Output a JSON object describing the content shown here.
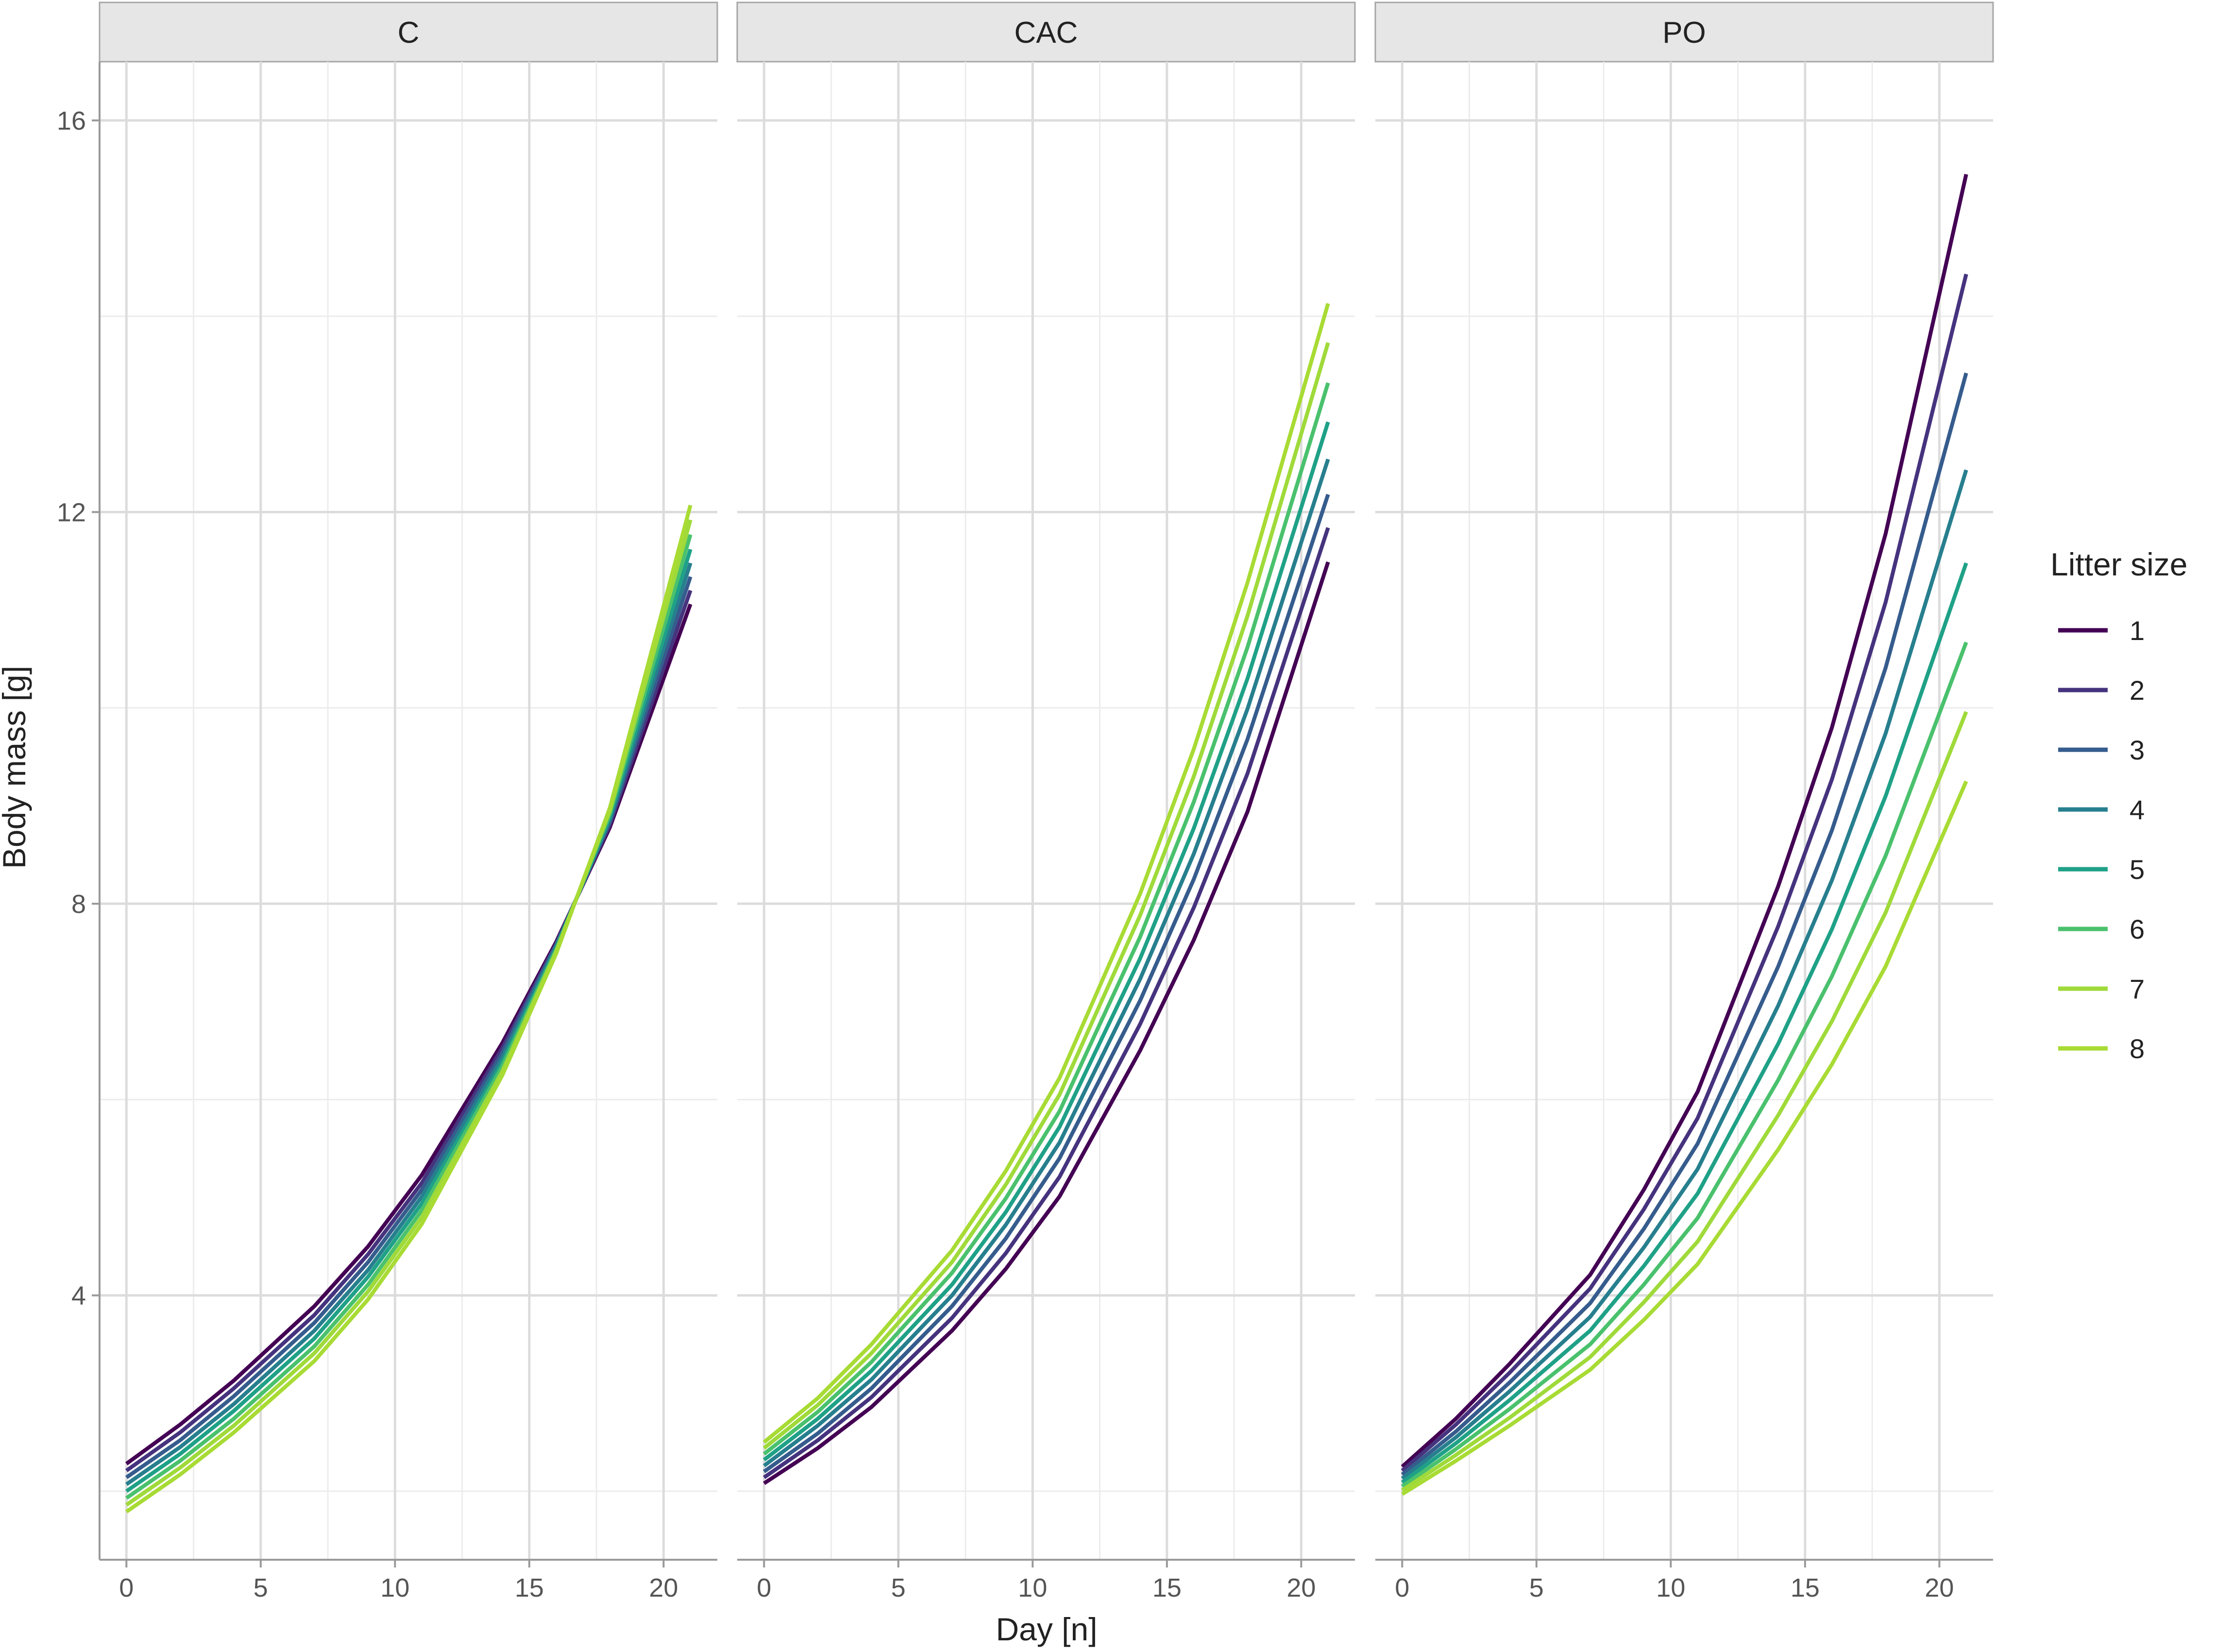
{
  "chart_data": {
    "type": "line",
    "facet_type": "small multiples",
    "xlabel": "Day [n]",
    "ylabel": "Body mass [g]",
    "xlim": [
      -1,
      22
    ],
    "ylim": [
      1.3,
      16.6
    ],
    "x_ticks": [
      0,
      5,
      10,
      15,
      20
    ],
    "x_tick_labels": [
      "0",
      "5",
      "10",
      "15",
      "20"
    ],
    "y_ticks": [
      4,
      8,
      12,
      16
    ],
    "y_tick_labels": [
      "4",
      "8",
      "12",
      "16"
    ],
    "grid": true,
    "x": [
      0,
      2,
      4,
      7,
      9,
      11,
      14,
      16,
      18,
      21
    ],
    "legend": {
      "title": "Litter size",
      "position": "right",
      "entries": [
        "1",
        "2",
        "3",
        "4",
        "5",
        "6",
        "7",
        "8"
      ]
    },
    "series_colors": [
      "#440154",
      "#46337E",
      "#365C8D",
      "#277F8E",
      "#1FA187",
      "#4AC16D",
      "#9FDA3A",
      "#A8DB34"
    ],
    "panels": [
      {
        "title": "C",
        "series": [
          {
            "name": "1",
            "values": [
              2.28,
              2.68,
              3.13,
              3.89,
              4.5,
              5.23,
              6.58,
              7.61,
              8.78,
              11.06
            ]
          },
          {
            "name": "2",
            "values": [
              2.21,
              2.6,
              3.05,
              3.8,
              4.42,
              5.15,
              6.53,
              7.59,
              8.81,
              11.2
            ]
          },
          {
            "name": "3",
            "values": [
              2.14,
              2.52,
              2.97,
              3.72,
              4.34,
              5.08,
              6.48,
              7.58,
              8.84,
              11.34
            ]
          },
          {
            "name": "4",
            "values": [
              2.07,
              2.45,
              2.89,
              3.64,
              4.26,
              5.01,
              6.43,
              7.56,
              8.86,
              11.48
            ]
          },
          {
            "name": "5",
            "values": [
              2.0,
              2.38,
              2.82,
              3.56,
              4.19,
              4.94,
              6.38,
              7.54,
              8.89,
              11.62
            ]
          },
          {
            "name": "6",
            "values": [
              1.93,
              2.31,
              2.74,
              3.48,
              4.11,
              4.87,
              6.34,
              7.53,
              8.92,
              11.77
            ]
          },
          {
            "name": "7",
            "values": [
              1.86,
              2.24,
              2.67,
              3.41,
              4.04,
              4.8,
              6.29,
              7.51,
              8.95,
              11.92
            ]
          },
          {
            "name": "8",
            "values": [
              1.79,
              2.17,
              2.6,
              3.33,
              3.96,
              4.73,
              6.25,
              7.49,
              8.98,
              12.07
            ]
          }
        ]
      },
      {
        "title": "CAC",
        "series": [
          {
            "name": "1",
            "values": [
              2.08,
              2.44,
              2.86,
              3.64,
              4.27,
              5.01,
              6.5,
              7.63,
              8.94,
              11.49
            ]
          },
          {
            "name": "2",
            "values": [
              2.14,
              2.52,
              2.96,
              3.77,
              4.43,
              5.21,
              6.77,
              7.96,
              9.33,
              11.84
            ]
          },
          {
            "name": "3",
            "values": [
              2.2,
              2.59,
              3.05,
              3.89,
              4.58,
              5.4,
              7.01,
              8.25,
              9.68,
              12.18
            ]
          },
          {
            "name": "4",
            "values": [
              2.26,
              2.67,
              3.14,
              4.0,
              4.72,
              5.56,
              7.23,
              8.51,
              9.99,
              12.54
            ]
          },
          {
            "name": "5",
            "values": [
              2.32,
              2.74,
              3.23,
              4.11,
              4.85,
              5.72,
              7.44,
              8.77,
              10.3,
              12.92
            ]
          },
          {
            "name": "6",
            "values": [
              2.38,
              2.81,
              3.32,
              4.23,
              4.99,
              5.88,
              7.66,
              9.04,
              10.62,
              13.32
            ]
          },
          {
            "name": "7",
            "values": [
              2.44,
              2.88,
              3.41,
              4.34,
              5.13,
              6.05,
              7.88,
              9.3,
              10.94,
              13.73
            ]
          },
          {
            "name": "8",
            "values": [
              2.5,
              2.95,
              3.5,
              4.46,
              5.27,
              6.22,
              8.1,
              9.58,
              11.28,
              14.13
            ]
          }
        ]
      },
      {
        "title": "PO",
        "series": [
          {
            "name": "1",
            "values": [
              2.25,
              2.74,
              3.3,
              4.21,
              5.08,
              6.08,
              8.18,
              9.8,
              11.78,
              15.45
            ]
          },
          {
            "name": "2",
            "values": [
              2.21,
              2.68,
              3.21,
              4.07,
              4.88,
              5.81,
              7.77,
              9.27,
              11.08,
              14.43
            ]
          },
          {
            "name": "3",
            "values": [
              2.17,
              2.61,
              3.11,
              3.92,
              4.68,
              5.55,
              7.36,
              8.75,
              10.41,
              13.42
            ]
          },
          {
            "name": "4",
            "values": [
              2.13,
              2.55,
              3.02,
              3.78,
              4.49,
              5.29,
              6.96,
              8.24,
              9.74,
              12.43
            ]
          },
          {
            "name": "5",
            "values": [
              2.09,
              2.49,
              2.93,
              3.64,
              4.3,
              5.04,
              6.57,
              7.74,
              9.1,
              11.48
            ]
          },
          {
            "name": "6",
            "values": [
              2.05,
              2.43,
              2.84,
              3.5,
              4.11,
              4.79,
              6.2,
              7.26,
              8.49,
              10.67
            ]
          },
          {
            "name": "7",
            "values": [
              2.01,
              2.37,
              2.75,
              3.37,
              3.93,
              4.55,
              5.84,
              6.8,
              7.91,
              9.96
            ]
          },
          {
            "name": "8",
            "values": [
              1.97,
              2.31,
              2.67,
              3.24,
              3.75,
              4.32,
              5.49,
              6.36,
              7.36,
              9.25
            ]
          }
        ]
      }
    ]
  }
}
